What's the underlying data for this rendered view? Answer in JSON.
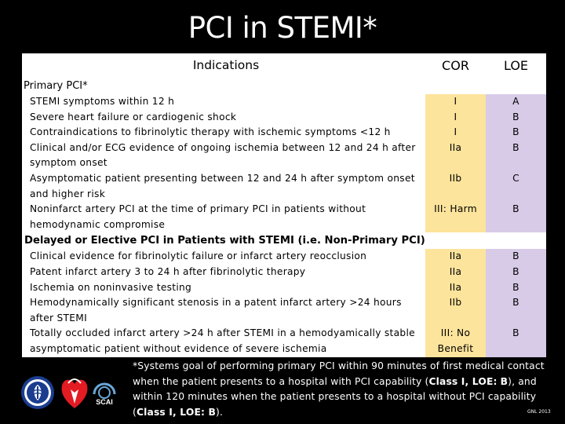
{
  "title": "PCI in STEMI*",
  "header": {
    "indications": "Indications",
    "cor": "COR",
    "loe": "LOE"
  },
  "sections": [
    {
      "label": "Primary PCI*",
      "groups": [
        {
          "lines": [
            "STEMI symptoms within 12 h",
            "Severe heart failure or cardiogenic shock",
            "Contraindications to fibrinolytic therapy with ischemic symptoms <12 h",
            "Clinical and/or ECG evidence of ongoing ischemia between 12 and 24 h after",
            "symptom onset"
          ],
          "cor": [
            "I",
            "I",
            "I",
            "IIa"
          ],
          "loe": [
            "A",
            "B",
            "B",
            "B"
          ]
        },
        {
          "lines": [
            "Asymptomatic patient presenting between 12 and 24 h after symptom onset",
            "and higher risk"
          ],
          "cor": [
            "IIb"
          ],
          "loe": [
            "C"
          ]
        },
        {
          "lines": [
            "Noninfarct artery PCI at the time of primary PCI in patients without",
            "hemodynamic compromise"
          ],
          "cor": [
            "III: Harm"
          ],
          "loe": [
            "B"
          ]
        }
      ]
    },
    {
      "label": "Delayed or Elective PCI in Patients with STEMI (i.e. Non-Primary PCI)",
      "groups": [
        {
          "lines": [
            "Clinical evidence for fibrinolytic failure or infarct artery reocclusion",
            "Patent infarct artery 3 to 24 h after fibrinolytic therapy",
            "Ischemia on noninvasive testing",
            "Hemodynamically significant stenosis in a patent infarct artery >24 hours",
            "after STEMI"
          ],
          "cor": [
            "IIa",
            "IIa",
            "IIa",
            "IIb"
          ],
          "loe": [
            "B",
            "B",
            "B",
            "B"
          ]
        },
        {
          "lines": [
            "Totally occluded infarct artery >24 h after STEMI in a hemodyamically stable",
            "asymptomatic patient without evidence of severe ischemia"
          ],
          "cor": [
            "III: No",
            "Benefit"
          ],
          "loe": [
            "B"
          ]
        }
      ]
    }
  ],
  "footnote": {
    "p1": "*Systems goal of performing primary PCI within 90 minutes of first medical contact when the patient presents to a hospital with PCI capability  (",
    "b1": "Class I, LOE:",
    "p2": " ",
    "b2": "B",
    "p3": "), and within 120 minutes when the patient presents to a hospital without PCI capability (",
    "b3": "Class I, LOE: B",
    "p4": ")."
  },
  "citation": "GNL 2013",
  "logos": [
    "ACCF seal",
    "AHA heart",
    "SCAI"
  ],
  "logo_text": {
    "scai": "SCAI"
  },
  "colors": {
    "background": "#000000",
    "cor_fill": "#fde49c",
    "loe_fill": "#d8cbe8",
    "title": "#ffffff"
  }
}
